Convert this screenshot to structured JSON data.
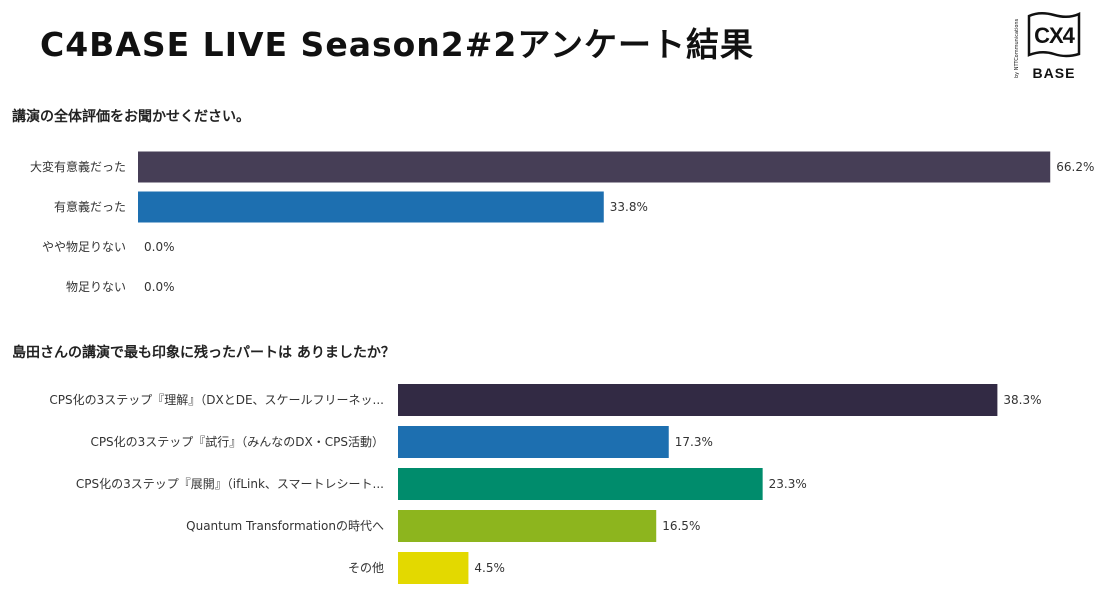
{
  "header": {
    "title": "C4BASE LIVE Season2#2アンケート結果",
    "logo": {
      "byline": "by NTTCommunications",
      "mark": "CX4",
      "base": "BASE"
    }
  },
  "chart_data": [
    {
      "type": "bar",
      "orientation": "horizontal",
      "title": "講演の全体評価をお聞かせください。",
      "categories": [
        "大変有意義だった",
        "有意義だった",
        "やや物足りない",
        "物足りない"
      ],
      "values": [
        66.2,
        33.8,
        0.0,
        0.0
      ],
      "value_labels": [
        "66.2%",
        "33.8%",
        "0.0%",
        "0.0%"
      ],
      "colors": [
        "#463e56",
        "#1d6fb0",
        "#0e8a6a",
        "#8db51e"
      ],
      "xlim": [
        0,
        100
      ]
    },
    {
      "type": "bar",
      "orientation": "horizontal",
      "title": "島田さんの講演で最も印象に残ったパートは ありましたか？",
      "categories": [
        "CPS化の3ステップ『理解』（DXとDE、スケールフリーネッ...",
        "CPS化の3ステップ『試行』（みんなのDX・CPS活動）",
        "CPS化の3ステップ『展開』（ifLink、スマートレシート...",
        "Quantum Transformationの時代へ",
        "その他"
      ],
      "values": [
        38.3,
        17.3,
        23.3,
        16.5,
        4.5
      ],
      "value_labels": [
        "38.3%",
        "17.3%",
        "23.3%",
        "16.5%",
        "4.5%"
      ],
      "colors": [
        "#322a44",
        "#1d6fb0",
        "#008c6c",
        "#8db51e",
        "#e3d900"
      ],
      "xlim": [
        0,
        40
      ]
    }
  ]
}
